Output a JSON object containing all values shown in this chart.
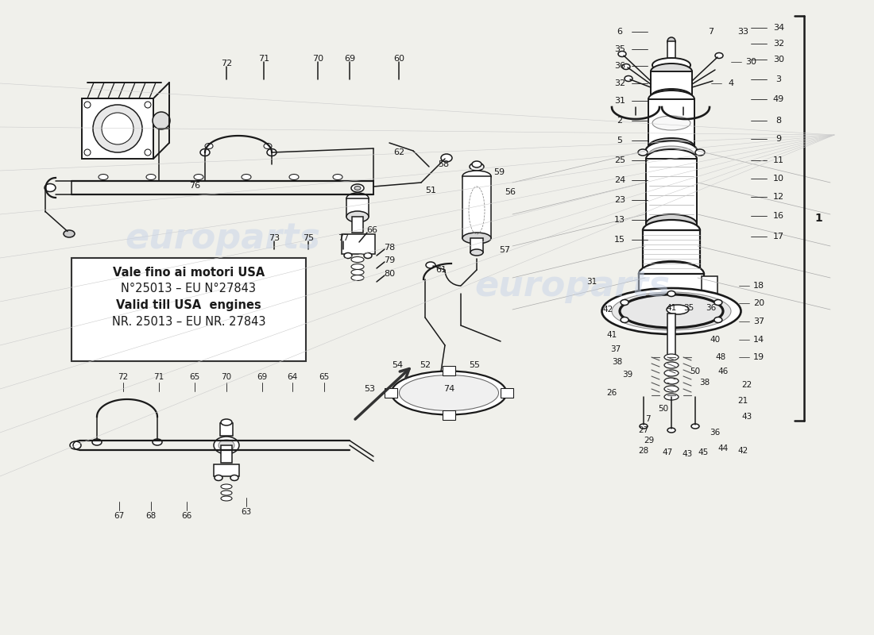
{
  "background_color": "#f0f0eb",
  "watermark_text": "europarts",
  "watermark_color": "#c8d4e8",
  "box_text_line1": "Vale fino ai motori USA",
  "box_text_line2": "N°25013 – EU N°27843",
  "box_text_line3": "Valid till USA  engines",
  "box_text_line4": "NR. 25013 – EU NR. 27843",
  "line_color": "#1a1a1a",
  "lw": 1.1
}
